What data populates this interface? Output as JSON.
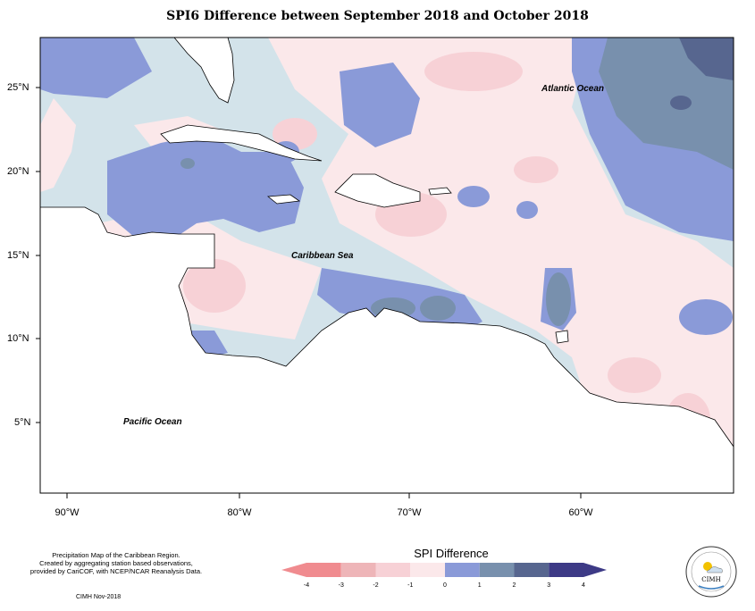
{
  "title": "SPI6 Difference between September 2018 and October 2018",
  "lat_labels": [
    "25°N",
    "20°N",
    "15°N",
    "10°N",
    "5°N"
  ],
  "lon_labels": [
    "90°W",
    "80°W",
    "70°W",
    "60°W"
  ],
  "regions": {
    "atlantic": "Atlantic Ocean",
    "caribbean": "Caribbean Sea",
    "pacific": "Pacific Ocean"
  },
  "footer": {
    "line1": "Precipitation Map of the Caribbean Region.",
    "line2": "Created by aggregating station based observations,",
    "line3": "provided by CariCOF, with NCEP/NCAR Reanalysis Data.",
    "credit": "CIMH Nov-2018"
  },
  "legend": {
    "title": "SPI Difference",
    "ticks": [
      "-4",
      "-3",
      "-2",
      "-1",
      "0",
      "1",
      "2",
      "3",
      "4"
    ],
    "colors": [
      "#f08b8f",
      "#eeb5b8",
      "#f7d1d6",
      "#fbe8ea",
      "#d3e3ea",
      "#8a9ad8",
      "#7890ad",
      "#57668f",
      "#3d3a86"
    ]
  },
  "logo": {
    "text": "CIMH"
  }
}
